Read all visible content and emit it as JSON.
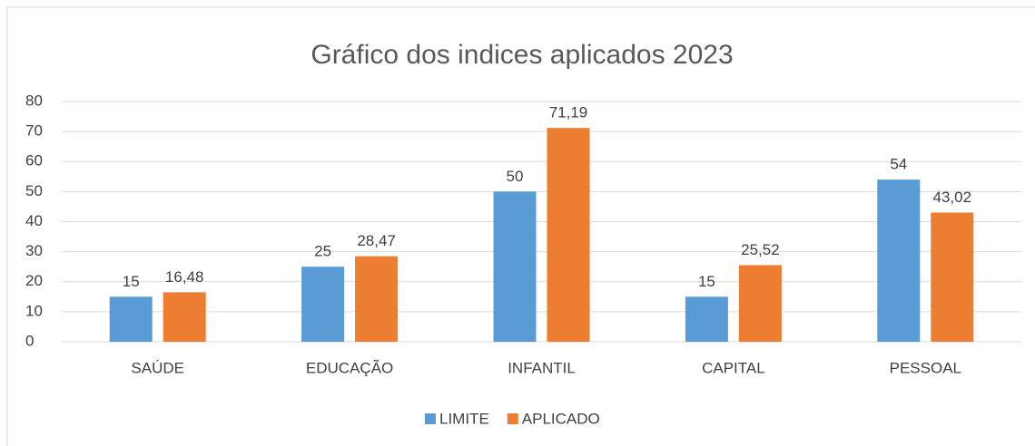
{
  "chart_data": {
    "type": "bar",
    "title": "Gráfico dos indices aplicados 2023",
    "categories": [
      "SAÚDE",
      "EDUCAÇÃO",
      "INFANTIL",
      "CAPITAL",
      "PESSOAL"
    ],
    "series": [
      {
        "name": "LIMITE",
        "color": "#5b9bd5",
        "values": [
          15,
          25,
          50,
          15,
          54
        ]
      },
      {
        "name": "APLICADO",
        "color": "#ed7d31",
        "values": [
          16.48,
          28.47,
          71.19,
          25.52,
          43.02
        ],
        "value_labels": [
          "16,48",
          "28,47",
          "71,19",
          "25,52",
          "43,02"
        ]
      }
    ],
    "ylim": [
      0,
      80
    ],
    "yticks": [
      0,
      10,
      20,
      30,
      40,
      50,
      60,
      70,
      80
    ],
    "grid": true,
    "legend": "bottom"
  }
}
